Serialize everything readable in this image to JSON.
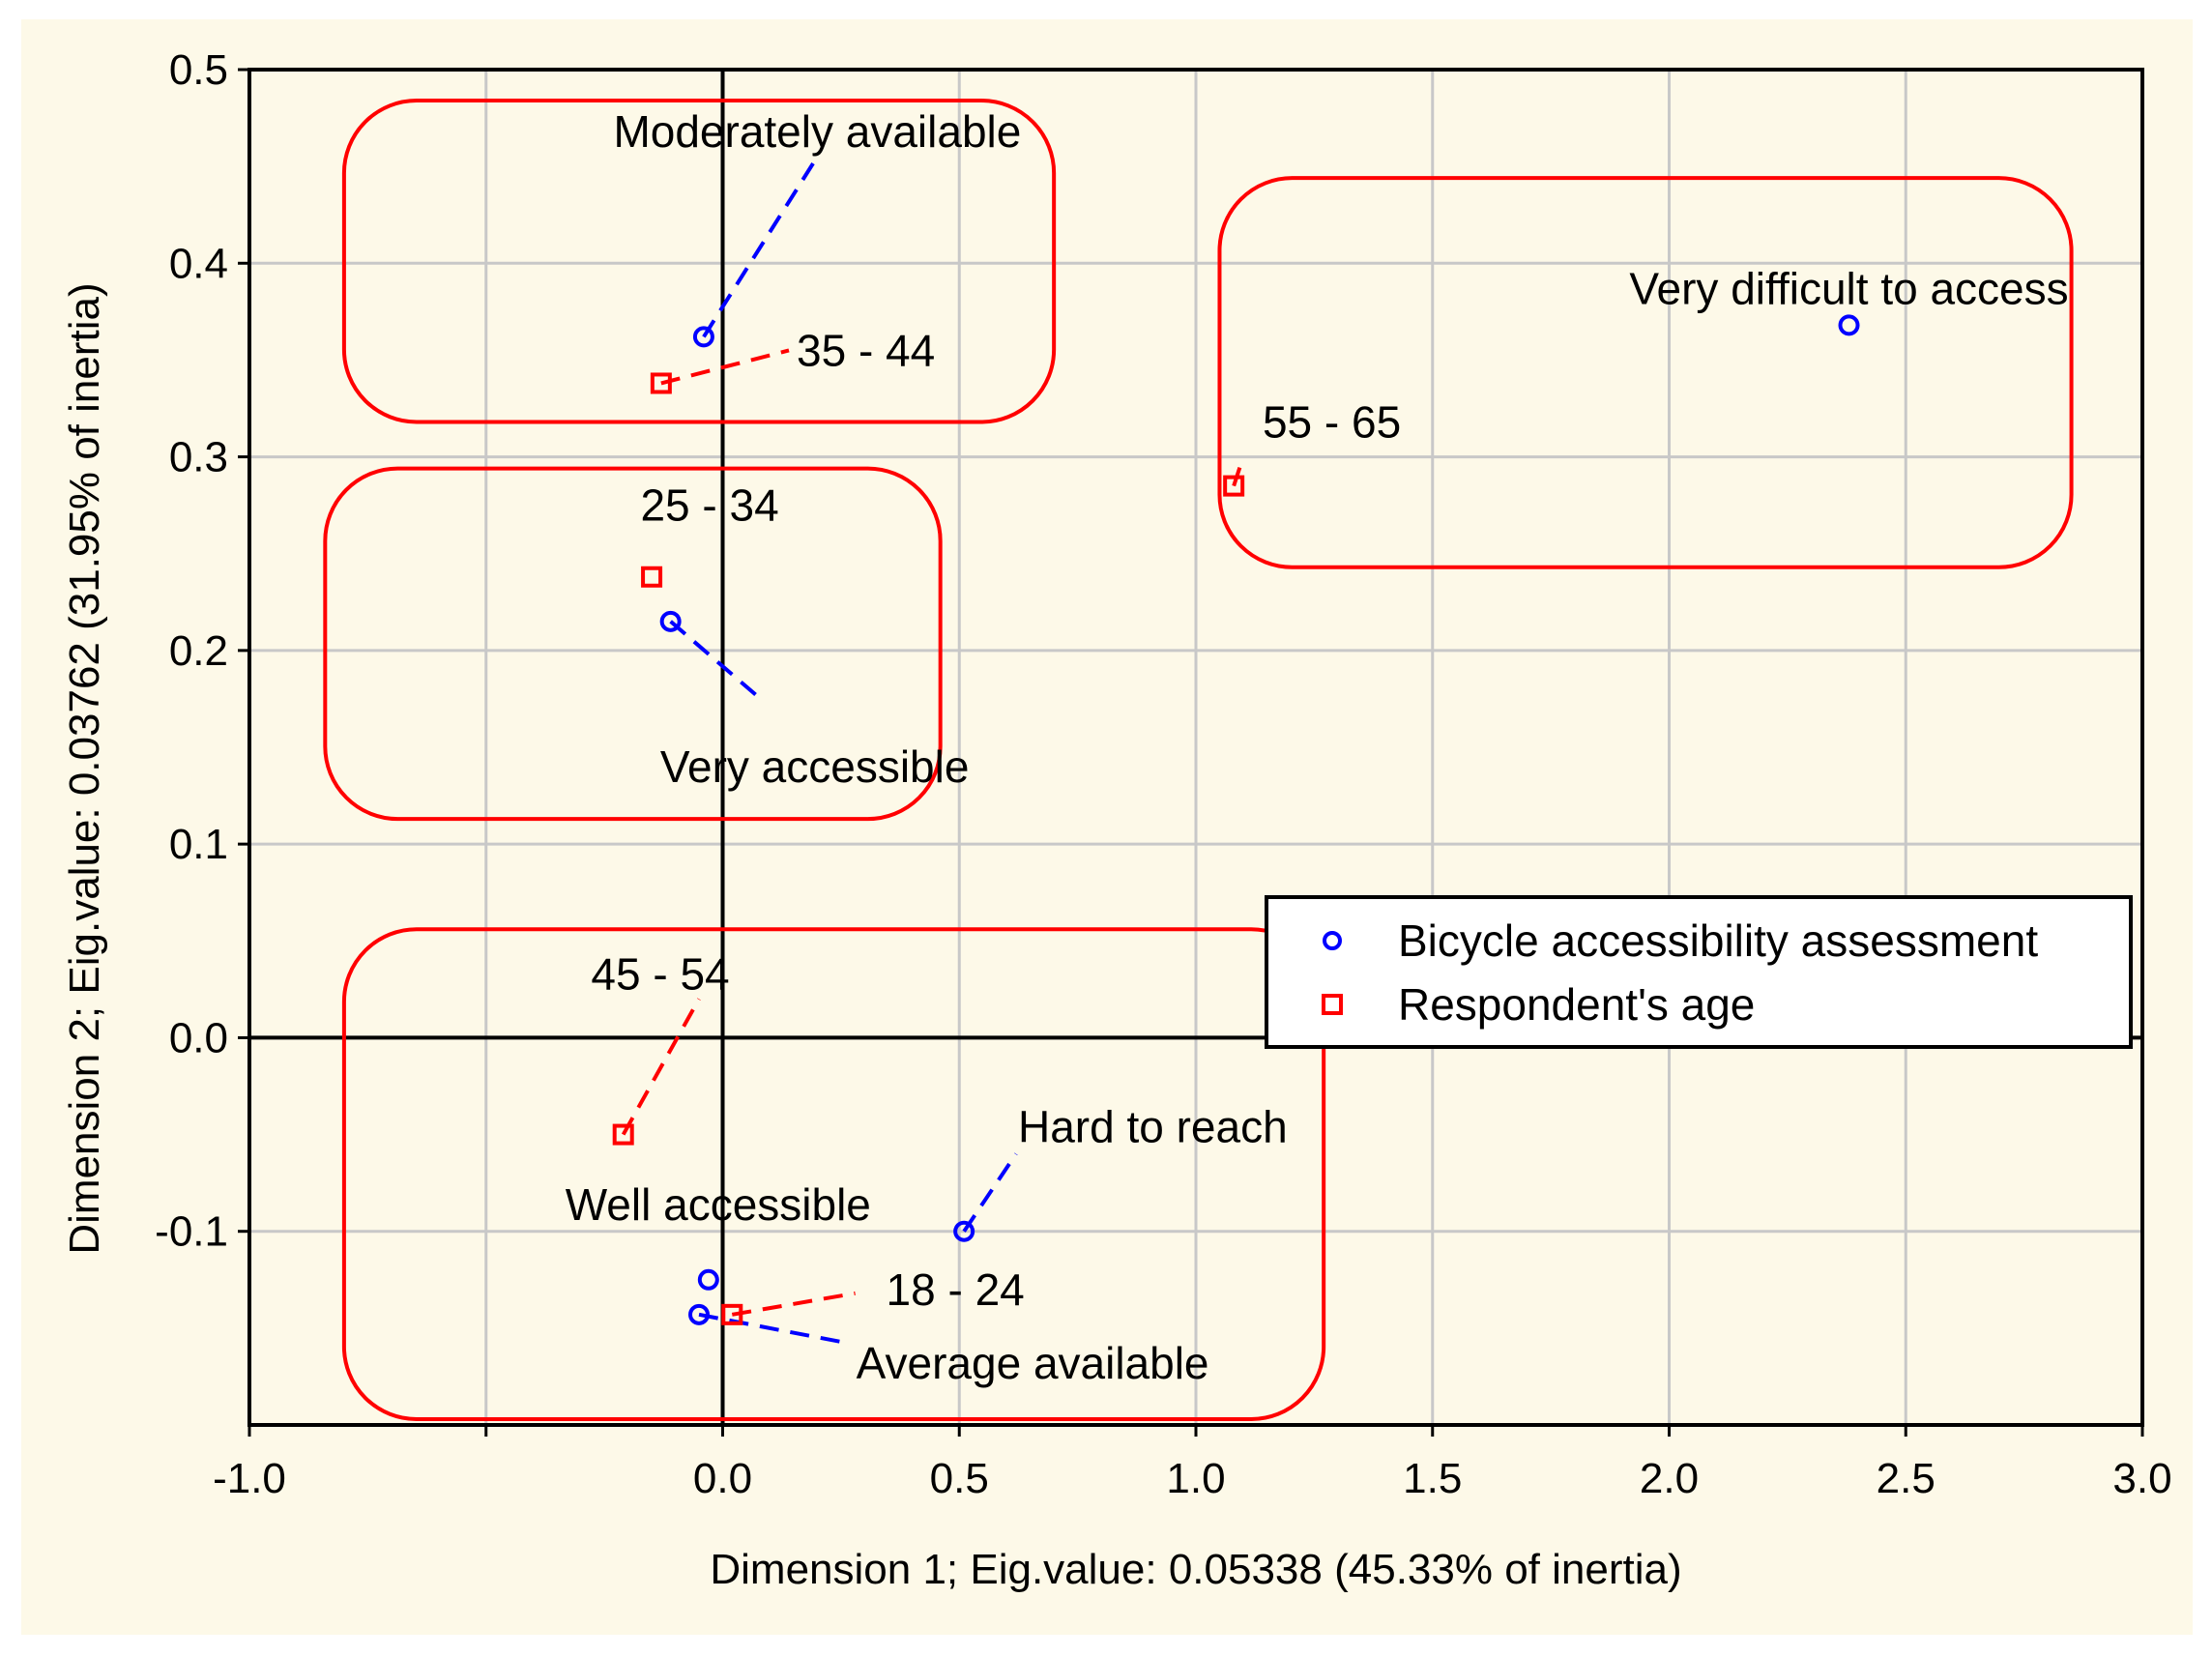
{
  "chart_data": {
    "type": "scatter",
    "title": "",
    "xlabel": "Dimension 1; Eig.value: 0.05338 (45.33% of inertia)",
    "ylabel": "Dimension 2; Eig.value: 0.03762 (31.95% of inertia)",
    "xlim": [
      -1.0,
      3.0
    ],
    "ylim": [
      -0.2,
      0.5
    ],
    "xticks": [
      -1.0,
      -0.5,
      0.0,
      0.5,
      1.0,
      1.5,
      2.0,
      2.5,
      3.0
    ],
    "xtick_labels": [
      "-1.0",
      "",
      "0.0",
      "0.5",
      "1.0",
      "1.5",
      "2.0",
      "2.5",
      "3.0"
    ],
    "yticks": [
      0.5,
      0.4,
      0.3,
      0.2,
      0.1,
      0.0,
      -0.1
    ],
    "ytick_labels": [
      "0.5",
      "0.4",
      "0.3",
      "0.2",
      "0.1",
      "0.0",
      "-0.1"
    ],
    "grid": true,
    "legend_position": "right-middle",
    "series": [
      {
        "name": "Bicycle accessibility assessment",
        "marker": "circle",
        "color": "#0000ff",
        "points": [
          {
            "label": "Moderately available",
            "x": -0.04,
            "y": 0.362,
            "label_x": 0.2,
            "label_y": 0.455
          },
          {
            "label": "Very difficult to access",
            "x": 2.38,
            "y": 0.368,
            "label_x": 2.38,
            "label_y": 0.368
          },
          {
            "label": "Very accessible",
            "x": -0.11,
            "y": 0.215,
            "label_x": 0.08,
            "label_y": 0.175
          },
          {
            "label": "Well accessible",
            "x": -0.03,
            "y": -0.125,
            "label_x": -0.03,
            "label_y": -0.125
          },
          {
            "label": "Average available",
            "x": -0.05,
            "y": -0.143,
            "label_x": 0.27,
            "label_y": -0.158
          },
          {
            "label": "Hard to reach",
            "x": 0.51,
            "y": -0.1,
            "label_x": 0.62,
            "label_y": -0.06
          }
        ]
      },
      {
        "name": "Respondent's age",
        "marker": "square",
        "color": "#ff0000",
        "points": [
          {
            "label": "35 - 44",
            "x": -0.13,
            "y": 0.338,
            "label_x": 0.14,
            "label_y": 0.355
          },
          {
            "label": "55 - 65",
            "x": 1.08,
            "y": 0.285,
            "label_x": 1.1,
            "label_y": 0.3
          },
          {
            "label": "25 - 34",
            "x": -0.15,
            "y": 0.238,
            "label_x": -0.15,
            "label_y": 0.238
          },
          {
            "label": "45 - 54",
            "x": -0.21,
            "y": -0.05,
            "label_x": -0.05,
            "label_y": 0.02
          },
          {
            "label": "18 - 24",
            "x": 0.02,
            "y": -0.143,
            "label_x": 0.28,
            "label_y": -0.132
          }
        ]
      }
    ],
    "cluster_boxes": [
      {
        "x_min": -0.8,
        "x_max": 0.7,
        "y_min": 0.318,
        "y_max": 0.484
      },
      {
        "x_min": 1.05,
        "x_max": 2.85,
        "y_min": 0.243,
        "y_max": 0.444
      },
      {
        "x_min": -0.84,
        "x_max": 0.46,
        "y_min": 0.113,
        "y_max": 0.294
      },
      {
        "x_min": -0.8,
        "x_max": 1.27,
        "y_min": -0.197,
        "y_max": 0.056
      }
    ],
    "box_color": "#ff0000"
  }
}
